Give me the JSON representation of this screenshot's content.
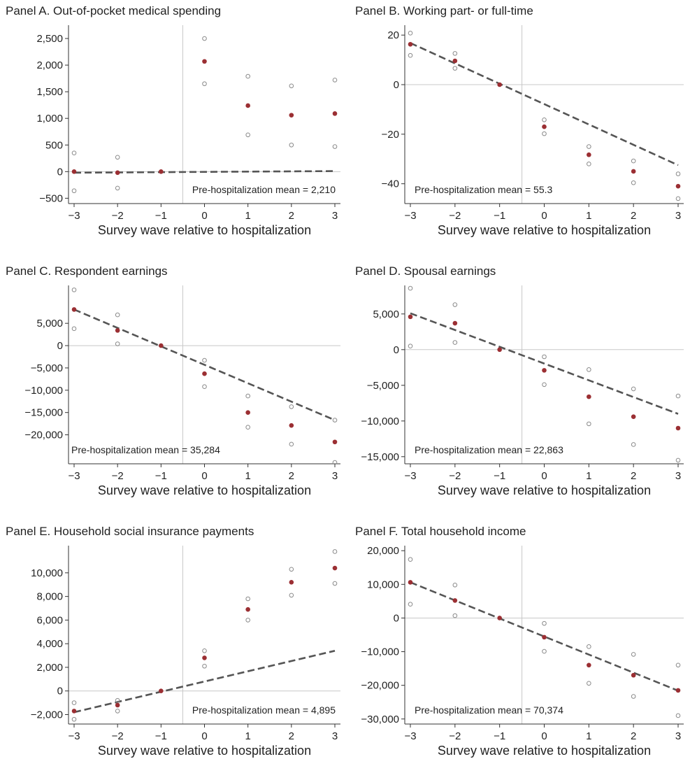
{
  "xlabel": "Survey wave relative to hospitalization",
  "colors": {
    "point": "#9b2f33",
    "ci": "#8a8a8a",
    "trend": "#555555",
    "ref": "#c8c8c8"
  },
  "chart_data": [
    {
      "type": "scatter",
      "title": "Panel A. Out-of-pocket medical spending",
      "xlabel": "Survey wave relative to hospitalization",
      "x": [
        -3,
        -2,
        -1,
        0,
        1,
        2,
        3
      ],
      "series": [
        {
          "role": "estimate",
          "values": [
            0,
            -20,
            0,
            2070,
            1240,
            1060,
            1090
          ]
        },
        {
          "role": "ci_upper",
          "values": [
            350,
            270,
            null,
            2500,
            1790,
            1610,
            1720
          ]
        },
        {
          "role": "ci_lower",
          "values": [
            -360,
            -310,
            null,
            1650,
            690,
            500,
            470
          ]
        }
      ],
      "trend": [
        [
          -3,
          -20
        ],
        [
          3,
          10
        ]
      ],
      "yticks": [
        -500,
        0,
        500,
        1000,
        1500,
        2000,
        2500
      ],
      "ylim": [
        -600,
        2750
      ],
      "annotation": "Pre-hospitalization mean = 2,210"
    },
    {
      "type": "scatter",
      "title": "Panel B. Working part- or full-time",
      "xlabel": "Survey wave relative to hospitalization",
      "x": [
        -3,
        -2,
        -1,
        0,
        1,
        2,
        3
      ],
      "series": [
        {
          "role": "estimate",
          "values": [
            16.3,
            9.6,
            0,
            -17,
            -28.3,
            -35,
            -41
          ]
        },
        {
          "role": "ci_upper",
          "values": [
            20.8,
            12.6,
            null,
            -14.2,
            -25,
            -30.8,
            -36
          ]
        },
        {
          "role": "ci_lower",
          "values": [
            11.8,
            6.6,
            null,
            -19.8,
            -32,
            -39.6,
            -46
          ]
        }
      ],
      "trend": [
        [
          -3,
          16.8
        ],
        [
          3,
          -32.5
        ]
      ],
      "yticks": [
        -40,
        -20,
        0,
        20
      ],
      "ylim": [
        -48,
        24
      ],
      "annotation": "Pre-hospitalization mean = 55.3"
    },
    {
      "type": "scatter",
      "title": "Panel C. Respondent earnings",
      "xlabel": "Survey wave relative to hospitalization",
      "x": [
        -3,
        -2,
        -1,
        0,
        1,
        2,
        3
      ],
      "series": [
        {
          "role": "estimate",
          "values": [
            8100,
            3400,
            0,
            -6300,
            -15000,
            -17900,
            -21600
          ]
        },
        {
          "role": "ci_upper",
          "values": [
            12500,
            6900,
            null,
            -3300,
            -11300,
            -13700,
            -16700
          ]
        },
        {
          "role": "ci_lower",
          "values": [
            3800,
            400,
            null,
            -9200,
            -18300,
            -22100,
            -26200
          ]
        }
      ],
      "trend": [
        [
          -3,
          8100
        ],
        [
          3,
          -16700
        ]
      ],
      "yticks": [
        -20000,
        -15000,
        -10000,
        -5000,
        0,
        5000
      ],
      "ylim": [
        -26500,
        13500
      ],
      "annotation": "Pre-hospitalization mean = 35,284"
    },
    {
      "type": "scatter",
      "title": "Panel D. Spousal earnings",
      "xlabel": "Survey wave relative to hospitalization",
      "x": [
        -3,
        -2,
        -1,
        0,
        1,
        2,
        3
      ],
      "series": [
        {
          "role": "estimate",
          "values": [
            4600,
            3700,
            0,
            -2900,
            -6600,
            -9400,
            -11000
          ]
        },
        {
          "role": "ci_upper",
          "values": [
            8600,
            6300,
            null,
            -1000,
            -2800,
            -5500,
            -6500
          ]
        },
        {
          "role": "ci_lower",
          "values": [
            500,
            1000,
            null,
            -4900,
            -10400,
            -13300,
            -15500
          ]
        }
      ],
      "trend": [
        [
          -3,
          5100
        ],
        [
          3,
          -9000
        ]
      ],
      "yticks": [
        -15000,
        -10000,
        -5000,
        0,
        5000
      ],
      "ylim": [
        -16000,
        9000
      ],
      "annotation": "Pre-hospitalization mean = 22,863"
    },
    {
      "type": "scatter",
      "title": "Panel E. Household social insurance payments",
      "xlabel": "Survey wave relative to hospitalization",
      "x": [
        -3,
        -2,
        -1,
        0,
        1,
        2,
        3
      ],
      "series": [
        {
          "role": "estimate",
          "values": [
            -1700,
            -1200,
            0,
            2800,
            6900,
            9200,
            10400
          ]
        },
        {
          "role": "ci_upper",
          "values": [
            -1000,
            -800,
            null,
            3400,
            7800,
            10300,
            11800
          ]
        },
        {
          "role": "ci_lower",
          "values": [
            -2400,
            -1700,
            null,
            2100,
            6000,
            8100,
            9100
          ]
        }
      ],
      "trend": [
        [
          -3,
          -1800
        ],
        [
          3,
          3400
        ]
      ],
      "yticks": [
        -2000,
        0,
        2000,
        4000,
        6000,
        8000,
        10000
      ],
      "ylim": [
        -2800,
        12300
      ],
      "annotation": "Pre-hospitalization mean = 4,895"
    },
    {
      "type": "scatter",
      "title": "Panel F. Total household income",
      "xlabel": "Survey wave relative to hospitalization",
      "x": [
        -3,
        -2,
        -1,
        0,
        1,
        2,
        3
      ],
      "series": [
        {
          "role": "estimate",
          "values": [
            10600,
            5200,
            0,
            -5700,
            -14000,
            -17000,
            -21500
          ]
        },
        {
          "role": "ci_upper",
          "values": [
            17400,
            9800,
            null,
            -1600,
            -8500,
            -10800,
            -14000
          ]
        },
        {
          "role": "ci_lower",
          "values": [
            4100,
            700,
            null,
            -9900,
            -19400,
            -23300,
            -29000
          ]
        }
      ],
      "trend": [
        [
          -3,
          10600
        ],
        [
          3,
          -21600
        ]
      ],
      "yticks": [
        -30000,
        -20000,
        -10000,
        0,
        10000,
        20000
      ],
      "ylim": [
        -31500,
        21500
      ],
      "annotation": "Pre-hospitalization mean = 70,374"
    }
  ]
}
